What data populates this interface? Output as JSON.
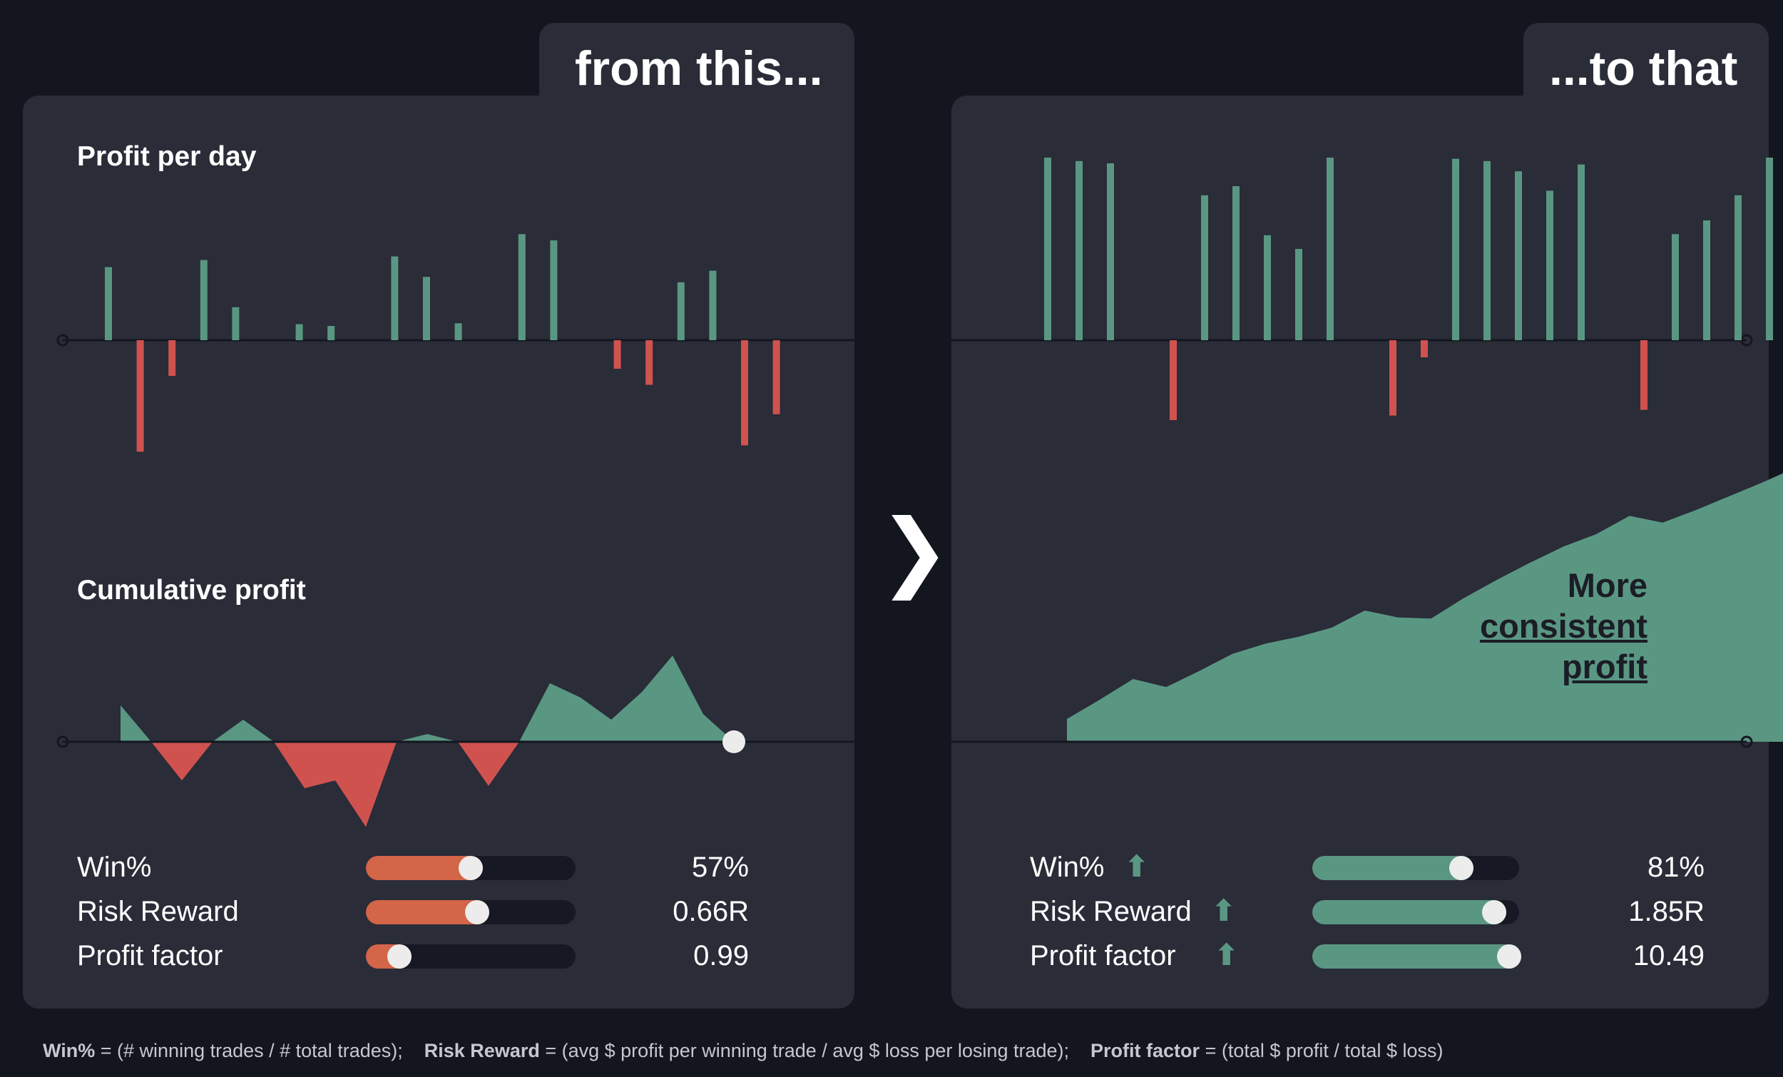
{
  "left": {
    "tab_title": "from this...",
    "daily_title": "Profit per day",
    "cumulative_title": "Cumulative profit"
  },
  "right": {
    "tab_title": "...to that",
    "callout_line1": "More",
    "callout_line2": "consistent",
    "callout_line3": "profit"
  },
  "arrow_glyph": "❯",
  "metrics_left": [
    {
      "label": "Win%",
      "value": "57%",
      "fill": 0.5,
      "improved": false
    },
    {
      "label": "Risk Reward",
      "value": "0.66R",
      "fill": 0.53,
      "improved": false
    },
    {
      "label": "Profit factor",
      "value": "0.99",
      "fill": 0.16,
      "improved": false
    }
  ],
  "metrics_right": [
    {
      "label": "Win%",
      "value": "81%",
      "fill": 0.72,
      "improved": true
    },
    {
      "label": "Risk Reward",
      "value": "1.85R",
      "fill": 0.88,
      "improved": true
    },
    {
      "label": "Profit factor",
      "value": "10.49",
      "fill": 0.95,
      "improved": true
    }
  ],
  "footer": {
    "t1": "Win%",
    "t2": "=  (# winning trades / # total trades);",
    "t3": "Risk Reward",
    "t4": "=  (avg $ profit per winning trade / avg $ loss per losing trade);",
    "t5": "Profit factor",
    "t6": "=  (total $ profit / total $ loss)"
  },
  "colors": {
    "positive": "#5a9783",
    "negative": "#d0524f",
    "metric_bad": "#d36548",
    "metric_good": "#5a9783",
    "panel": "#2a2c38",
    "background": "#13151f"
  },
  "chart_data": [
    {
      "id": "left-daily",
      "type": "bar",
      "title": "Profit per day",
      "values": [
        82,
        -125,
        -40,
        90,
        37,
        0,
        18,
        16,
        0,
        94,
        71,
        19,
        0,
        119,
        112,
        0,
        -32,
        -50,
        65,
        78,
        -118,
        -83
      ],
      "ylim": [
        -160,
        160
      ]
    },
    {
      "id": "left-cumulative",
      "type": "area",
      "title": "Cumulative profit",
      "values": [
        33,
        0,
        -35,
        0,
        20,
        0,
        -42,
        -35,
        -77,
        0,
        7,
        0,
        -40,
        0,
        53,
        40,
        20,
        45,
        78,
        25,
        0
      ],
      "ylim": [
        -80,
        80
      ]
    },
    {
      "id": "right-daily",
      "type": "bar",
      "values": [
        160,
        157,
        155,
        0,
        -70,
        127,
        135,
        92,
        80,
        160,
        0,
        -66,
        -15,
        159,
        157,
        148,
        131,
        154,
        0,
        -61,
        93,
        105,
        127,
        160
      ],
      "ylim": [
        -160,
        160
      ]
    },
    {
      "id": "right-cumulative",
      "type": "area",
      "values": [
        20,
        37,
        55,
        48,
        62,
        77,
        86,
        92,
        100,
        115,
        109,
        108,
        126,
        142,
        157,
        171,
        182,
        198,
        192,
        203,
        215,
        227,
        240
      ],
      "ylim": [
        0,
        240
      ]
    }
  ]
}
